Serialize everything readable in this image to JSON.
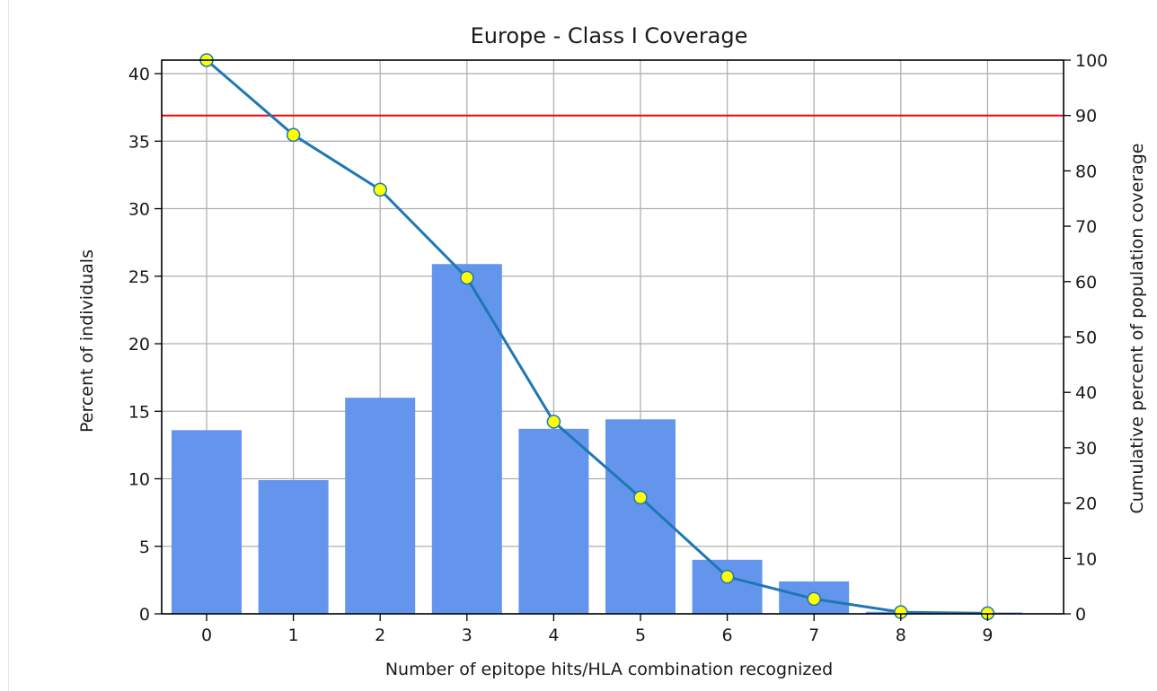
{
  "chart_data": {
    "type": "bar",
    "title": "Europe - Class I Coverage",
    "xlabel": "Number of epitope hits/HLA combination recognized",
    "ylabel": "Percent of individuals",
    "y2label": "Cumulative percent of population coverage",
    "categories": [
      "0",
      "1",
      "2",
      "3",
      "4",
      "5",
      "6",
      "7",
      "8",
      "9"
    ],
    "bar_series": {
      "values": [
        13.6,
        9.9,
        16.0,
        25.9,
        13.7,
        14.4,
        4.0,
        2.4,
        0.15,
        0.1
      ],
      "color": "#6495ed"
    },
    "line_series": {
      "axis": "right",
      "values": [
        100.0,
        86.5,
        76.6,
        60.7,
        34.7,
        21.0,
        6.7,
        2.7,
        0.3,
        0.1
      ],
      "line_color": "#1f77b4",
      "marker_color": "#ffff00"
    },
    "reference_line": {
      "axis": "right",
      "value": 90,
      "color": "#ff0000"
    },
    "ylim": [
      0,
      41
    ],
    "y2lim": [
      0,
      100
    ],
    "yticks": [
      "0",
      "5",
      "10",
      "15",
      "20",
      "25",
      "30",
      "35",
      "40"
    ],
    "y2ticks": [
      "0",
      "10",
      "20",
      "30",
      "40",
      "50",
      "60",
      "70",
      "80",
      "90",
      "100"
    ],
    "grid": true
  }
}
